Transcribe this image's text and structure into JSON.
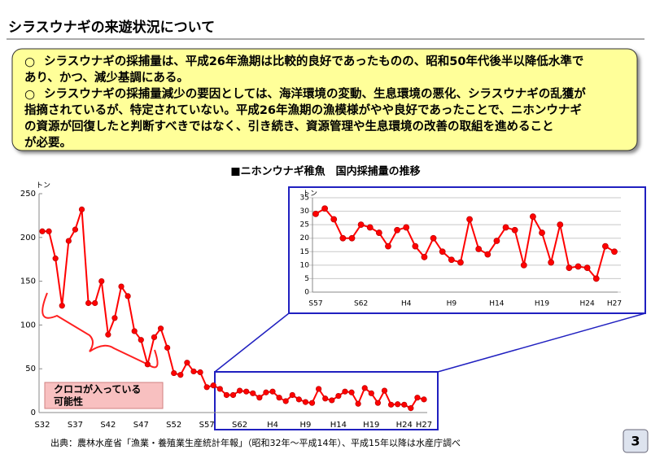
{
  "header": {
    "title": "シラスウナギの来遊状況について"
  },
  "summary": {
    "bullets": [
      {
        "marker": "○",
        "lines": [
          "シラスウナギの採捕量は、平成26年漁期は比較的良好であったものの、昭和50年代後半以降低水準で",
          "あり、かつ、減少基調にある。"
        ]
      },
      {
        "marker": "○",
        "lines": [
          "シラスウナギの採捕量減少の要因としては、海洋環境の変動、生息環境の悪化、シラスウナギの乱獲が",
          "指摘されているが、特定されていない。平成26年漁期の漁模様がやや良好であったことで、ニホンウナギ",
          "の資源が回復したと判断すべきではなく、引き続き、資源管理や生息環境の改善の取組を進めること",
          "が必要。"
        ]
      }
    ]
  },
  "chart_data": [
    {
      "type": "line",
      "title": "■ニホンウナギ稚魚　国内採捕量の推移",
      "y_label": "トン",
      "annotation": [
        "クロコが入っている",
        "可能性"
      ],
      "categories": [
        "S32",
        null,
        null,
        null,
        null,
        "S37",
        null,
        null,
        null,
        null,
        "S42",
        null,
        null,
        null,
        null,
        "S47",
        null,
        null,
        null,
        null,
        "S52",
        null,
        null,
        null,
        null,
        "S57",
        null,
        null,
        null,
        null,
        "S62",
        null,
        null,
        null,
        null,
        "H4",
        null,
        null,
        null,
        null,
        "H9",
        null,
        null,
        null,
        null,
        "H14",
        null,
        null,
        null,
        null,
        "H19",
        null,
        null,
        null,
        null,
        "H24",
        null,
        null,
        "H27"
      ],
      "values": [
        207,
        207,
        176,
        122,
        196,
        209,
        232,
        125,
        125,
        150,
        89,
        108,
        144,
        133,
        93,
        83,
        55,
        86,
        96,
        74,
        45,
        43,
        57,
        47,
        46,
        29,
        31,
        27,
        20,
        20,
        25,
        24,
        22,
        17,
        23,
        24,
        17,
        13,
        20,
        15,
        12,
        11,
        27,
        16,
        14,
        19,
        24,
        23,
        10,
        28,
        22,
        11,
        25,
        9,
        9.5,
        9,
        5,
        17,
        15
      ],
      "color": "#ff0000",
      "ylim": [
        0,
        250
      ],
      "yticks": [
        0,
        50,
        100,
        150,
        200,
        250
      ],
      "grid": false
    },
    {
      "type": "line",
      "y_label": "トン",
      "categories": [
        "S57",
        null,
        null,
        null,
        null,
        "S62",
        null,
        null,
        null,
        null,
        "H4",
        null,
        null,
        null,
        null,
        "H9",
        null,
        null,
        null,
        null,
        "H14",
        null,
        null,
        null,
        null,
        "H19",
        null,
        null,
        null,
        null,
        "H24",
        null,
        null,
        "H27"
      ],
      "values": [
        29,
        31,
        27,
        20,
        20,
        25,
        24,
        22,
        17,
        23,
        24,
        17,
        13,
        20,
        15,
        12,
        11,
        27,
        16,
        14,
        19,
        24,
        23,
        10,
        28,
        22,
        11,
        25,
        9,
        9.5,
        9,
        5,
        17,
        15
      ],
      "color": "#ff0000",
      "ylim": [
        0,
        35
      ],
      "yticks": [
        0,
        5,
        10,
        15,
        20,
        25,
        30,
        35
      ],
      "grid": true
    }
  ],
  "footer": {
    "source": "出典：農林水産省「漁業・養殖業生産統計年報」（昭和32年～平成14年）、平成15年以降は水産庁調べ",
    "page": "3"
  }
}
